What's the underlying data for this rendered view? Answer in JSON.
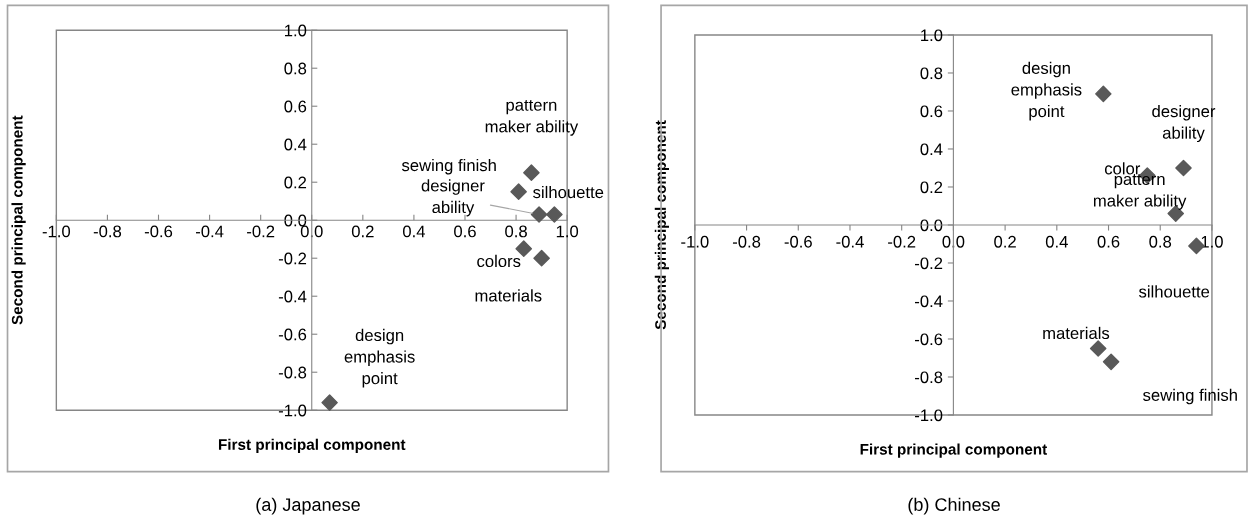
{
  "chart_data": [
    {
      "type": "scatter",
      "xlabel": "First principal component",
      "ylabel": "Second principal component",
      "x": [
        0.86,
        0.81,
        0.89,
        0.95,
        0.83,
        0.9,
        0.07
      ],
      "values": [
        0.25,
        0.15,
        0.03,
        0.03,
        -0.15,
        -0.2,
        -0.96
      ],
      "color": "#595959",
      "marker": "diamond",
      "grid": false,
      "legend": false,
      "xlim": [
        -1.0,
        1.0
      ],
      "ylim": [
        -1.0,
        1.0
      ],
      "xticks": [
        {
          "value": -1.0,
          "label": "-1.0"
        },
        {
          "value": -0.8,
          "label": "-0.8"
        },
        {
          "value": -0.6,
          "label": "-0.6"
        },
        {
          "value": -0.4,
          "label": "-0.4"
        },
        {
          "value": -0.2,
          "label": "-0.2"
        },
        {
          "value": 0.0,
          "label": "0.0"
        },
        {
          "value": 0.2,
          "label": "0.2"
        },
        {
          "value": 0.4,
          "label": "0.4"
        },
        {
          "value": 0.6,
          "label": "0.6"
        },
        {
          "value": 0.8,
          "label": "0.8"
        },
        {
          "value": 1.0,
          "label": "1.0"
        }
      ],
      "yticks": [
        {
          "value": -1.0,
          "label": "-1.0"
        },
        {
          "value": -0.8,
          "label": "-0.8"
        },
        {
          "value": -0.6,
          "label": "-0.6"
        },
        {
          "value": -0.4,
          "label": "-0.4"
        },
        {
          "value": -0.2,
          "label": "-0.2"
        },
        {
          "value": 0.0,
          "label": "0.0"
        },
        {
          "value": 0.2,
          "label": "0.2"
        },
        {
          "value": 0.4,
          "label": "0.4"
        },
        {
          "value": 0.6,
          "label": "0.6"
        },
        {
          "value": 0.8,
          "label": "0.8"
        },
        {
          "value": 1.0,
          "label": "1.0"
        }
      ],
      "annotations": [
        {
          "text": "pattern\nmaker ability",
          "x": 0.86,
          "y": 0.25
        },
        {
          "text": "sewing finish",
          "x": 0.81,
          "y": 0.15
        },
        {
          "text": "designer\nability",
          "x": 0.89,
          "y": 0.03
        },
        {
          "text": "silhouette",
          "x": 0.95,
          "y": 0.03
        },
        {
          "text": "colors",
          "x": 0.83,
          "y": -0.15
        },
        {
          "text": "materials",
          "x": 0.9,
          "y": -0.2
        },
        {
          "text": "design\nemphasis\npoint",
          "x": 0.07,
          "y": -0.96
        },
        "(a) Japanese"
      ]
    },
    {
      "type": "scatter",
      "xlabel": "First principal component",
      "ylabel": "Second principal component",
      "x": [
        0.58,
        0.89,
        0.75,
        0.86,
        0.94,
        0.56,
        0.61
      ],
      "values": [
        0.69,
        0.3,
        0.26,
        0.06,
        -0.11,
        -0.65,
        -0.72
      ],
      "color": "#595959",
      "marker": "diamond",
      "grid": false,
      "legend": false,
      "xlim": [
        -1.0,
        1.0
      ],
      "ylim": [
        -1.0,
        1.0
      ],
      "xticks": [
        {
          "value": -1.0,
          "label": "-1.0"
        },
        {
          "value": -0.8,
          "label": "-0.8"
        },
        {
          "value": -0.6,
          "label": "-0.6"
        },
        {
          "value": -0.4,
          "label": "-0.4"
        },
        {
          "value": -0.2,
          "label": "-0.2"
        },
        {
          "value": 0.0,
          "label": "0.0"
        },
        {
          "value": 0.2,
          "label": "0.2"
        },
        {
          "value": 0.4,
          "label": "0.4"
        },
        {
          "value": 0.6,
          "label": "0.6"
        },
        {
          "value": 0.8,
          "label": "0.8"
        },
        {
          "value": 1.0,
          "label": "1.0"
        }
      ],
      "yticks": [
        {
          "value": -1.0,
          "label": "-1.0"
        },
        {
          "value": -0.8,
          "label": "-0.8"
        },
        {
          "value": -0.6,
          "label": "-0.6"
        },
        {
          "value": -0.4,
          "label": "-0.4"
        },
        {
          "value": -0.2,
          "label": "-0.2"
        },
        {
          "value": 0.0,
          "label": "0.0"
        },
        {
          "value": 0.2,
          "label": "0.2"
        },
        {
          "value": 0.4,
          "label": "0.4"
        },
        {
          "value": 0.6,
          "label": "0.6"
        },
        {
          "value": 0.8,
          "label": "0.8"
        },
        {
          "value": 1.0,
          "label": "1.0"
        }
      ],
      "annotations": [
        {
          "text": "design\nemphasis\npoint",
          "x": 0.58,
          "y": 0.69
        },
        {
          "text": "designer\nability",
          "x": 0.89,
          "y": 0.3
        },
        {
          "text": "color",
          "x": 0.75,
          "y": 0.26
        },
        {
          "text": "pattern\nmaker ability",
          "x": 0.86,
          "y": 0.06
        },
        {
          "text": "silhouette",
          "x": 0.94,
          "y": -0.11
        },
        {
          "text": "materials",
          "x": 0.56,
          "y": -0.65
        },
        {
          "text": "sewing finish",
          "x": 0.61,
          "y": -0.72
        },
        "(b) Chinese"
      ]
    }
  ]
}
